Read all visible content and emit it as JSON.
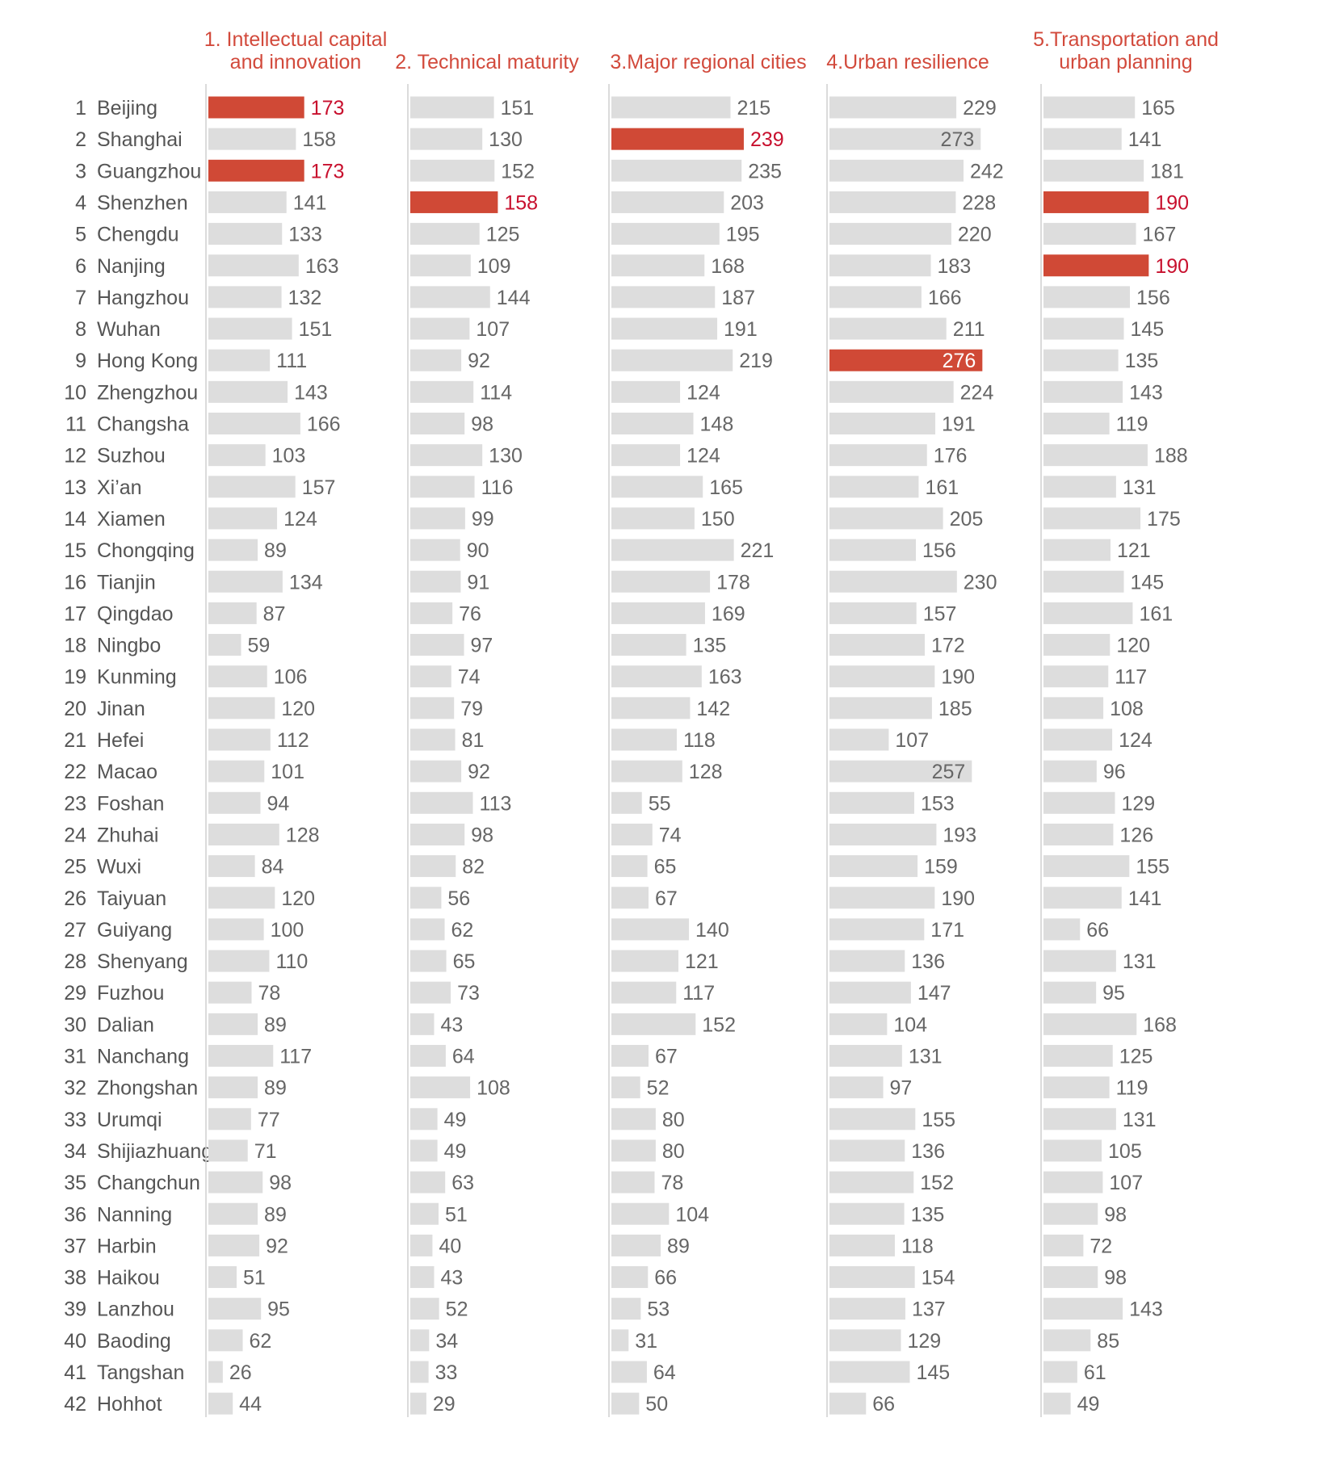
{
  "colors": {
    "bar": "#dddddd",
    "highlight": "#d04936",
    "highlight_text": "#c8102e",
    "text": "#555555",
    "divider": "#cfcfcf"
  },
  "chart_data": {
    "type": "bar",
    "orientation": "horizontal",
    "grid": false,
    "legend": "none",
    "categories": [
      "Beijing",
      "Shanghai",
      "Guangzhou",
      "Shenzhen",
      "Chengdu",
      "Nanjing",
      "Hangzhou",
      "Wuhan",
      "Hong Kong",
      "Zhengzhou",
      "Changsha",
      "Suzhou",
      "Xi’an",
      "Xiamen",
      "Chongqing",
      "Tianjin",
      "Qingdao",
      "Ningbo",
      "Kunming",
      "Jinan",
      "Hefei",
      "Macao",
      "Foshan",
      "Zhuhai",
      "Wuxi",
      "Taiyuan",
      "Guiyang",
      "Shenyang",
      "Fuzhou",
      "Dalian",
      "Nanchang",
      "Zhongshan",
      "Urumqi",
      "Shijiazhuang",
      "Changchun",
      "Nanning",
      "Harbin",
      "Haikou",
      "Lanzhou",
      "Baoding",
      "Tangshan",
      "Hohhot"
    ],
    "ranks": [
      "1",
      "2",
      "3",
      "4",
      "5",
      "6",
      "7",
      "8",
      "9",
      "10",
      "11",
      "12",
      "13",
      "14",
      "15",
      "16",
      "17",
      "18",
      "19",
      "20",
      "21",
      "22",
      "23",
      "24",
      "25",
      "26",
      "27",
      "28",
      "29",
      "30",
      "31",
      "32",
      "33",
      "34",
      "35",
      "36",
      "37",
      "38",
      "39",
      "40",
      "41",
      "42"
    ],
    "series": [
      {
        "name": "1. Intellectual capital and innovation",
        "title_lines": [
          "1. Intellectual capital",
          "and innovation"
        ],
        "values": [
          173,
          158,
          173,
          141,
          133,
          163,
          132,
          151,
          111,
          143,
          166,
          103,
          157,
          124,
          89,
          134,
          87,
          59,
          106,
          120,
          112,
          101,
          94,
          128,
          84,
          120,
          100,
          110,
          78,
          89,
          117,
          89,
          77,
          71,
          98,
          89,
          92,
          51,
          95,
          62,
          26,
          44
        ],
        "highlight": [
          0,
          2
        ]
      },
      {
        "name": "2. Technical maturity",
        "title_lines": [
          "2. Technical maturity"
        ],
        "values": [
          151,
          130,
          152,
          158,
          125,
          109,
          144,
          107,
          92,
          114,
          98,
          130,
          116,
          99,
          90,
          91,
          76,
          97,
          74,
          79,
          81,
          92,
          113,
          98,
          82,
          56,
          62,
          65,
          73,
          43,
          64,
          108,
          49,
          49,
          63,
          51,
          40,
          43,
          52,
          34,
          33,
          29
        ],
        "highlight": [
          3
        ]
      },
      {
        "name": "3.Major regional cities",
        "title_lines": [
          "3.Major regional cities"
        ],
        "values": [
          215,
          239,
          235,
          203,
          195,
          168,
          187,
          191,
          219,
          124,
          148,
          124,
          165,
          150,
          221,
          178,
          169,
          135,
          163,
          142,
          118,
          128,
          55,
          74,
          65,
          67,
          140,
          121,
          117,
          152,
          67,
          52,
          80,
          80,
          78,
          104,
          89,
          66,
          53,
          31,
          64,
          50
        ],
        "highlight": [
          1
        ]
      },
      {
        "name": "4.Urban resilience",
        "title_lines": [
          "4.Urban resilience"
        ],
        "values": [
          229,
          273,
          242,
          228,
          220,
          183,
          166,
          211,
          276,
          224,
          191,
          176,
          161,
          205,
          156,
          230,
          157,
          172,
          190,
          185,
          107,
          257,
          153,
          193,
          159,
          190,
          171,
          136,
          147,
          104,
          131,
          97,
          155,
          136,
          152,
          135,
          118,
          154,
          137,
          129,
          145,
          66
        ],
        "highlight": [
          8
        ]
      },
      {
        "name": "5.Transportation and urban planning",
        "title_lines": [
          "5.Transportation and",
          "urban planning"
        ],
        "values": [
          165,
          141,
          181,
          190,
          167,
          190,
          156,
          145,
          135,
          143,
          119,
          188,
          131,
          175,
          121,
          145,
          161,
          120,
          117,
          108,
          124,
          96,
          129,
          126,
          155,
          141,
          66,
          131,
          95,
          168,
          125,
          119,
          131,
          105,
          107,
          98,
          72,
          98,
          143,
          85,
          61,
          49
        ],
        "highlight": [
          3,
          5
        ]
      }
    ]
  }
}
